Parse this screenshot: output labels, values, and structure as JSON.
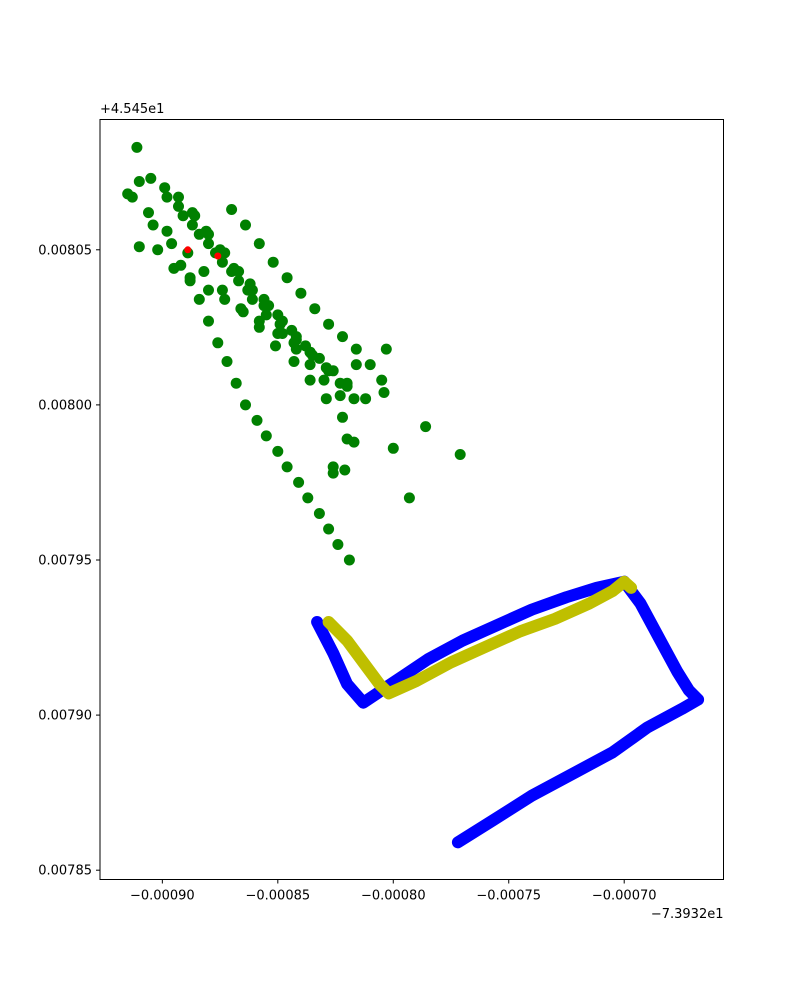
{
  "chart_data": {
    "type": "scatter",
    "title": "",
    "xlabel": "",
    "ylabel": "",
    "x_offset_label": "−7.3932e1",
    "y_offset_label": "+4.545e1",
    "xlim": [
      -0.000927,
      -0.000657
    ],
    "ylim": [
      0.007847,
      0.008092
    ],
    "grid": false,
    "legend": "none",
    "x_ticks": [
      {
        "value": -0.0009,
        "label": "−0.00090"
      },
      {
        "value": -0.00085,
        "label": "−0.00085"
      },
      {
        "value": -0.0008,
        "label": "−0.00080"
      },
      {
        "value": -0.00075,
        "label": "−0.00075"
      },
      {
        "value": -0.0007,
        "label": "−0.00070"
      }
    ],
    "y_ticks": [
      {
        "value": 0.00785,
        "label": "0.00785"
      },
      {
        "value": 0.0079,
        "label": "0.00790"
      },
      {
        "value": 0.00795,
        "label": "0.00795"
      },
      {
        "value": 0.008,
        "label": "0.00800"
      },
      {
        "value": 0.00805,
        "label": "0.00805"
      }
    ],
    "series": [
      {
        "color": "#0000ff",
        "kind": "path",
        "x": [
          -0.000833,
          -0.000826,
          -0.00082,
          -0.000813,
          -0.000805,
          -0.000795,
          -0.000785,
          -0.00077,
          -0.000755,
          -0.00074,
          -0.000725,
          -0.000712,
          -0.0007,
          -0.000693,
          -0.000685,
          -0.000677,
          -0.000672,
          -0.000668,
          -0.000675,
          -0.00069,
          -0.000705,
          -0.00072,
          -0.00074,
          -0.000757,
          -0.000772
        ],
        "y": [
          0.00793,
          0.00792,
          0.00791,
          0.007904,
          0.007908,
          0.007913,
          0.007918,
          0.007924,
          0.007929,
          0.007934,
          0.007938,
          0.007941,
          0.007943,
          0.007936,
          0.007925,
          0.007914,
          0.007908,
          0.007905,
          0.007902,
          0.007896,
          0.007888,
          0.007882,
          0.007874,
          0.007866,
          0.007859
        ]
      },
      {
        "color": "#bfbf00",
        "kind": "path",
        "x": [
          -0.000828,
          -0.00082,
          -0.000812,
          -0.000806,
          -0.000802,
          -0.00079,
          -0.000775,
          -0.00076,
          -0.000745,
          -0.00073,
          -0.000715,
          -0.000705,
          -0.0007,
          -0.000697
        ],
        "y": [
          0.00793,
          0.007924,
          0.007916,
          0.00791,
          0.007907,
          0.007911,
          0.007917,
          0.007922,
          0.007927,
          0.007931,
          0.007936,
          0.00794,
          0.007943,
          0.007941
        ]
      },
      {
        "color": "#008000",
        "kind": "points",
        "x": [
          -0.000911,
          -0.00091,
          -0.000913,
          -0.000904,
          -0.000896,
          -0.000892,
          -0.000888,
          -0.000884,
          -0.00088,
          -0.000876,
          -0.000872,
          -0.000868,
          -0.000864,
          -0.000859,
          -0.000855,
          -0.00085,
          -0.000846,
          -0.000841,
          -0.000837,
          -0.000832,
          -0.000828,
          -0.000824,
          -0.000819,
          -0.000915,
          -0.000906,
          -0.000898,
          -0.000889,
          -0.000882,
          -0.000874,
          -0.000866,
          -0.000858,
          -0.000851,
          -0.000843,
          -0.000836,
          -0.000829,
          -0.000822,
          -0.000905,
          -0.000898,
          -0.000891,
          -0.000884,
          -0.000877,
          -0.00087,
          -0.000863,
          -0.000856,
          -0.000849,
          -0.000842,
          -0.000835,
          -0.000828,
          -0.00082,
          -0.000899,
          -0.000893,
          -0.000887,
          -0.00088,
          -0.000874,
          -0.000867,
          -0.000861,
          -0.000855,
          -0.000848,
          -0.000842,
          -0.000836,
          -0.00083,
          -0.000823,
          -0.000893,
          -0.000886,
          -0.00088,
          -0.000873,
          -0.000867,
          -0.000861,
          -0.000854,
          -0.000848,
          -0.000842,
          -0.000836,
          -0.000829,
          -0.000823,
          -0.000817,
          -0.000887,
          -0.000881,
          -0.000875,
          -0.000869,
          -0.000862,
          -0.000856,
          -0.00085,
          -0.000844,
          -0.000838,
          -0.000832,
          -0.000826,
          -0.00082,
          -0.00087,
          -0.000864,
          -0.000858,
          -0.000852,
          -0.000846,
          -0.00084,
          -0.000834,
          -0.000828,
          -0.000822,
          -0.000816,
          -0.00081,
          -0.000805,
          -0.000816,
          -0.000812,
          -0.00082,
          -0.000804,
          -0.0008,
          -0.000821,
          -0.000817,
          -0.000803,
          -0.000786,
          -0.000771,
          -0.000826,
          -0.000826,
          -0.000793,
          -0.00091,
          -0.000902,
          -0.000895,
          -0.000888,
          -0.00088,
          -0.000873,
          -0.000865,
          -0.000858,
          -0.00085,
          -0.000843,
          -0.000836
        ],
        "y": [
          0.008083,
          0.008072,
          0.008067,
          0.008058,
          0.008052,
          0.008045,
          0.00804,
          0.008034,
          0.008027,
          0.00802,
          0.008014,
          0.008007,
          0.008,
          0.007995,
          0.00799,
          0.007985,
          0.00798,
          0.007975,
          0.00797,
          0.007965,
          0.00796,
          0.007955,
          0.00795,
          0.008068,
          0.008062,
          0.008056,
          0.008049,
          0.008043,
          0.008037,
          0.008031,
          0.008025,
          0.008019,
          0.008014,
          0.008008,
          0.008002,
          0.007996,
          0.008073,
          0.008067,
          0.008061,
          0.008055,
          0.008049,
          0.008043,
          0.008037,
          0.008032,
          0.008026,
          0.008021,
          0.008016,
          0.008011,
          0.008006,
          0.00807,
          0.008064,
          0.008058,
          0.008052,
          0.008046,
          0.00804,
          0.008034,
          0.008029,
          0.008023,
          0.008018,
          0.008013,
          0.008008,
          0.008003,
          0.008067,
          0.008061,
          0.008055,
          0.008049,
          0.008043,
          0.008037,
          0.008032,
          0.008027,
          0.008022,
          0.008017,
          0.008012,
          0.008007,
          0.008002,
          0.008062,
          0.008056,
          0.00805,
          0.008044,
          0.008039,
          0.008034,
          0.008029,
          0.008024,
          0.008019,
          0.008015,
          0.008011,
          0.008007,
          0.008063,
          0.008058,
          0.008052,
          0.008046,
          0.008041,
          0.008036,
          0.008031,
          0.008026,
          0.008022,
          0.008018,
          0.008013,
          0.008008,
          0.008013,
          0.008002,
          0.007989,
          0.008004,
          0.007986,
          0.007979,
          0.007988,
          0.008018,
          0.007993,
          0.007984,
          0.00798,
          0.007978,
          0.00797,
          0.008051,
          0.00805,
          0.008044,
          0.008041,
          0.008037,
          0.008034,
          0.00803,
          0.008027,
          0.008023,
          0.00802,
          0.008017
        ]
      },
      {
        "color": "#ff0000",
        "kind": "points",
        "x": [
          -0.000889,
          -0.000876
        ],
        "y": [
          0.00805,
          0.008048
        ]
      }
    ]
  }
}
